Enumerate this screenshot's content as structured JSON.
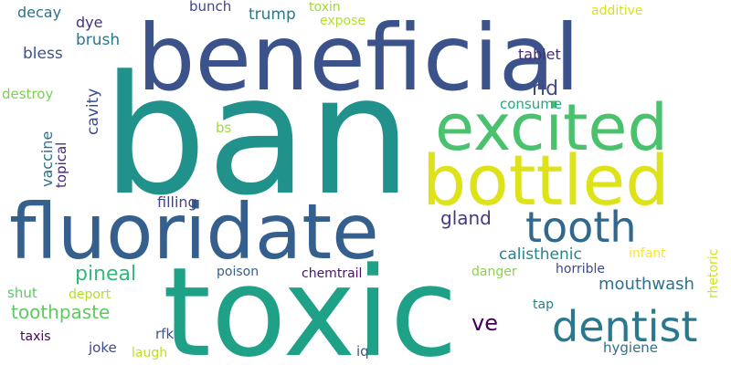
{
  "words": [
    {
      "text": "ban",
      "color": "#21918c"
    },
    {
      "text": "toxic",
      "color": "#1fa187"
    },
    {
      "text": "beneficial",
      "color": "#3b528b"
    },
    {
      "text": "fluoridate",
      "color": "#355f8d"
    },
    {
      "text": "bottled",
      "color": "#dde318"
    },
    {
      "text": "excited",
      "color": "#4ac16d"
    },
    {
      "text": "dentist",
      "color": "#2a788e"
    },
    {
      "text": "tooth",
      "color": "#31688e"
    },
    {
      "text": "pineal",
      "color": "#35b779"
    },
    {
      "text": "mouthwash",
      "color": "#2c728e"
    },
    {
      "text": "toothpaste",
      "color": "#5ec962"
    },
    {
      "text": "gland",
      "color": "#443983"
    },
    {
      "text": "calisthenic",
      "color": "#25858e"
    },
    {
      "text": "ve",
      "color": "#440154"
    },
    {
      "text": "rid",
      "color": "#3e4a89"
    },
    {
      "text": "brush",
      "color": "#2a788e"
    },
    {
      "text": "trump",
      "color": "#2a788e"
    },
    {
      "text": "bless",
      "color": "#3b528b"
    },
    {
      "text": "decay",
      "color": "#2c728e"
    },
    {
      "text": "dye",
      "color": "#46327e"
    },
    {
      "text": "bunch",
      "color": "#404688"
    },
    {
      "text": "toxin",
      "color": "#a0da39"
    },
    {
      "text": "expose",
      "color": "#b5de2b"
    },
    {
      "text": "additive",
      "color": "#d8e219"
    },
    {
      "text": "tablet",
      "color": "#472d7b"
    },
    {
      "text": "destroy",
      "color": "#7ad151"
    },
    {
      "text": "consume",
      "color": "#22a884"
    },
    {
      "text": "cavity",
      "color": "#3e4a89"
    },
    {
      "text": "vaccine",
      "color": "#2c728e"
    },
    {
      "text": "topical",
      "color": "#482878"
    },
    {
      "text": "bs",
      "color": "#a0da39"
    },
    {
      "text": "filling",
      "color": "#414487"
    },
    {
      "text": "infant",
      "color": "#fde725"
    },
    {
      "text": "rhetoric",
      "color": "#d2e21b"
    },
    {
      "text": "horrible",
      "color": "#3f4788"
    },
    {
      "text": "danger",
      "color": "#86d549"
    },
    {
      "text": "chemtrail",
      "color": "#471365"
    },
    {
      "text": "poison",
      "color": "#355f8d"
    },
    {
      "text": "shut",
      "color": "#5ec962"
    },
    {
      "text": "deport",
      "color": "#b5de2b"
    },
    {
      "text": "tap",
      "color": "#26828e"
    },
    {
      "text": "taxis",
      "color": "#450559"
    },
    {
      "text": "rfk",
      "color": "#3b528b"
    },
    {
      "text": "joke",
      "color": "#3e4a89"
    },
    {
      "text": "laugh",
      "color": "#c2df23"
    },
    {
      "text": "iq",
      "color": "#39568c"
    },
    {
      "text": "hygiene",
      "color": "#2d708e"
    }
  ]
}
